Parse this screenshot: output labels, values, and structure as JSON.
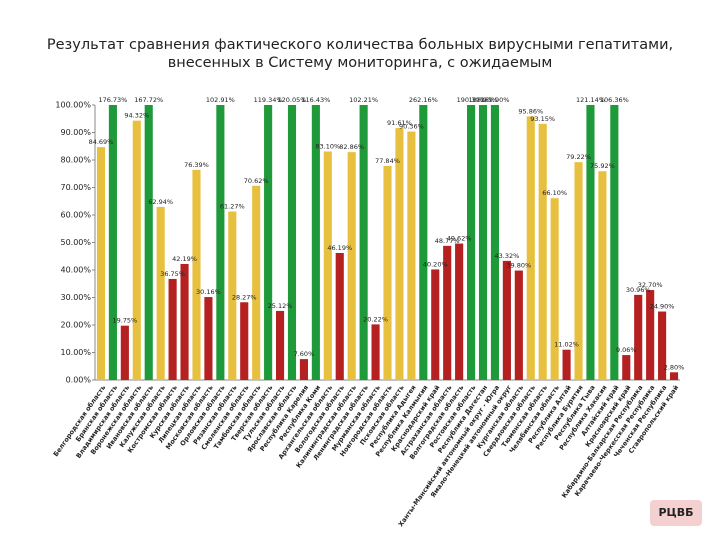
{
  "chart_data": {
    "type": "bar",
    "title": [
      "Результат сравнения фактического количества больных вирусными гепатитами,",
      "внесенных в Систему мониторинга, с ожидаемым"
    ],
    "categories": [
      "Белгородская область",
      "Брянская область",
      "Владимирская область",
      "Воронежская область",
      "Ивановская область",
      "Калужская область",
      "Костромская область",
      "Курская область",
      "Липецкая область",
      "Московская область",
      "Орловская область",
      "Рязанская область",
      "Смоленская область",
      "Тамбовская область",
      "Тверская область",
      "Тульская область",
      "Ярославская область",
      "Республика Карелия",
      "Республика Коми",
      "Архангельская область",
      "Вологодская область",
      "Калининградская область",
      "Ленинградская область",
      "Мурманская область",
      "Новгородская область",
      "Псковская область",
      "Республика Адыгея",
      "Республика Калмыкия",
      "Краснодарский край",
      "Астраханская область",
      "Волгоградская область",
      "Ростовская область",
      "Республика Дагестан",
      "Ханты-Мансийский автономный округ - Югра",
      "Ямало-Ненецкий автономный округ",
      "Курганская область",
      "Свердловская область",
      "Тюменская область",
      "Челябинская область",
      "Республика Алтай",
      "Республика Бурятия",
      "Республика Тыва",
      "Республика Хакасия",
      "Алтайский край",
      "Красноярский край",
      "Кабардино-Балкарская Республика",
      "Карачаево-Черкесская Республика",
      "Чеченская Республика",
      "Ставропольский край"
    ],
    "values": [
      84.69,
      176.73,
      19.75,
      94.32,
      167.72,
      62.94,
      36.75,
      42.19,
      76.39,
      30.16,
      102.91,
      61.27,
      28.27,
      70.62,
      119.34,
      25.12,
      120.05,
      7.6,
      116.43,
      83.1,
      46.19,
      82.86,
      102.21,
      20.22,
      77.84,
      91.61,
      90.36,
      262.16,
      40.2,
      48.77,
      49.62,
      190.3,
      188.9,
      169.9,
      43.32,
      39.8,
      95.86,
      93.15,
      66.1,
      11.02,
      79.22,
      121.14,
      75.92,
      106.36,
      9.06,
      30.96,
      32.7,
      24.9,
      2.8
    ],
    "value_labels": [
      "84.69%",
      "176.73%",
      "19.75%",
      "94.32%",
      "167.72%",
      "62.94%",
      "36.75%",
      "42.19%",
      "76.39%",
      "30.16%",
      "102.91%",
      "61.27%",
      "28.27%",
      "70.62%",
      "119.34%",
      "25.12%",
      "120.05%",
      "7.60%",
      "116.43%",
      "83.10%",
      "46.19%",
      "82.86%",
      "102.21%",
      "20.22%",
      "77.84%",
      "91.61%",
      "90.36%",
      "262.16%",
      "40.20%",
      "48.77%",
      "49.62%",
      "190.30%",
      "188.90%",
      "169.90%",
      "43.32%",
      "39.80%",
      "95.86%",
      "93.15%",
      "66.10%",
      "11.02%",
      "79.22%",
      "121.14%",
      "75.92%",
      "106.36%",
      "9.06%",
      "30.96%",
      "32.70%",
      "24.90%",
      "2.80%"
    ],
    "colors": [
      "#e8c040",
      "#1f9a3a",
      "#b52020",
      "#e8c040",
      "#1f9a3a",
      "#e8c040",
      "#b52020",
      "#b52020",
      "#e8c040",
      "#b52020",
      "#1f9a3a",
      "#e8c040",
      "#b52020",
      "#e8c040",
      "#1f9a3a",
      "#b52020",
      "#1f9a3a",
      "#b52020",
      "#1f9a3a",
      "#e8c040",
      "#b52020",
      "#e8c040",
      "#1f9a3a",
      "#b52020",
      "#e8c040",
      "#e8c040",
      "#e8c040",
      "#1f9a3a",
      "#b52020",
      "#b52020",
      "#b52020",
      "#1f9a3a",
      "#1f9a3a",
      "#1f9a3a",
      "#b52020",
      "#b52020",
      "#e8c040",
      "#e8c040",
      "#e8c040",
      "#b52020",
      "#e8c040",
      "#1f9a3a",
      "#e8c040",
      "#1f9a3a",
      "#b52020",
      "#b52020",
      "#b52020",
      "#b52020",
      "#b52020"
    ],
    "ylim": [
      0,
      100
    ],
    "yticks": [
      {
        "value": 0,
        "label": "0.00%"
      },
      {
        "value": 10,
        "label": "10.00%"
      },
      {
        "value": 20,
        "label": "20.00%"
      },
      {
        "value": 30,
        "label": "30.00%"
      },
      {
        "value": 40,
        "label": "40.00%"
      },
      {
        "value": 50,
        "label": "50.00%"
      },
      {
        "value": 60,
        "label": "60.00%"
      },
      {
        "value": 70,
        "label": "70.00%"
      },
      {
        "value": 80,
        "label": "80.00%"
      },
      {
        "value": 90,
        "label": "90.00%"
      },
      {
        "value": 100,
        "label": "100.00%"
      }
    ],
    "grid": false
  }
}
